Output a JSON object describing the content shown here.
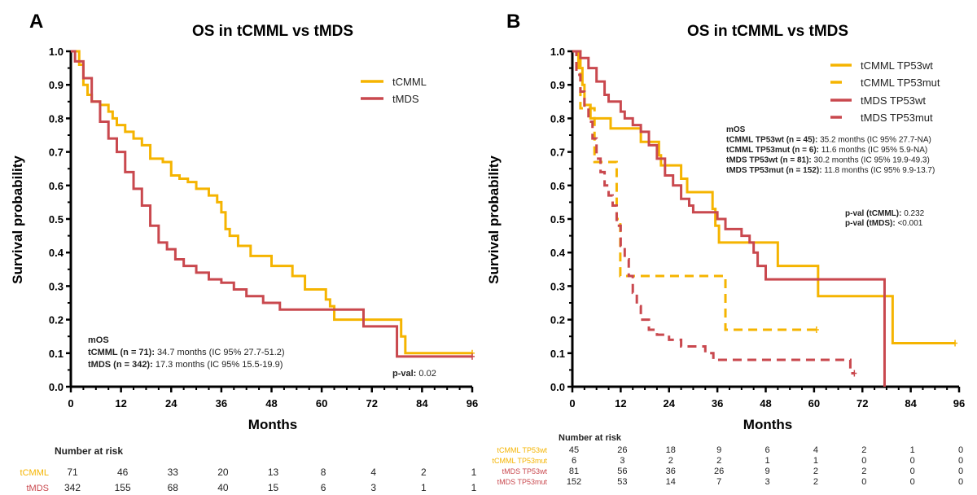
{
  "colors": {
    "tCMML": "#F5B400",
    "tMDS": "#C9484E"
  },
  "chart_data": [
    {
      "type": "line",
      "panel_label": "A",
      "title": "OS in tCMML vs tMDS",
      "xlabel": "Months",
      "ylabel": "Survival probability",
      "xlim": [
        0,
        96
      ],
      "ylim": [
        0,
        1
      ],
      "xticks": [
        0,
        12,
        24,
        36,
        48,
        60,
        72,
        84,
        96
      ],
      "yticks": [
        0.0,
        0.1,
        0.2,
        0.3,
        0.4,
        0.5,
        0.6,
        0.7,
        0.8,
        0.9,
        1.0
      ],
      "legend_position": "top-right",
      "series": [
        {
          "name": "tCMML",
          "color": "#F5B400",
          "style": "solid",
          "points": [
            [
              0,
              1
            ],
            [
              2,
              0.96
            ],
            [
              3,
              0.9
            ],
            [
              4,
              0.87
            ],
            [
              5,
              0.85
            ],
            [
              7,
              0.84
            ],
            [
              9,
              0.82
            ],
            [
              10,
              0.8
            ],
            [
              11,
              0.78
            ],
            [
              13,
              0.76
            ],
            [
              15,
              0.74
            ],
            [
              17,
              0.72
            ],
            [
              19,
              0.68
            ],
            [
              22,
              0.67
            ],
            [
              24,
              0.63
            ],
            [
              26,
              0.62
            ],
            [
              28,
              0.61
            ],
            [
              30,
              0.59
            ],
            [
              33,
              0.57
            ],
            [
              35,
              0.55
            ],
            [
              36,
              0.52
            ],
            [
              37,
              0.47
            ],
            [
              38,
              0.45
            ],
            [
              40,
              0.42
            ],
            [
              43,
              0.39
            ],
            [
              48,
              0.36
            ],
            [
              53,
              0.33
            ],
            [
              56,
              0.29
            ],
            [
              61,
              0.26
            ],
            [
              62,
              0.24
            ],
            [
              63,
              0.2
            ],
            [
              79,
              0.15
            ],
            [
              80,
              0.1
            ],
            [
              96,
              0.1
            ]
          ]
        },
        {
          "name": "tMDS",
          "color": "#C9484E",
          "style": "solid",
          "points": [
            [
              0,
              1
            ],
            [
              1,
              0.97
            ],
            [
              3,
              0.92
            ],
            [
              5,
              0.85
            ],
            [
              7,
              0.79
            ],
            [
              9,
              0.74
            ],
            [
              11,
              0.7
            ],
            [
              13,
              0.64
            ],
            [
              15,
              0.59
            ],
            [
              17,
              0.54
            ],
            [
              19,
              0.48
            ],
            [
              21,
              0.43
            ],
            [
              23,
              0.41
            ],
            [
              25,
              0.38
            ],
            [
              27,
              0.36
            ],
            [
              30,
              0.34
            ],
            [
              33,
              0.32
            ],
            [
              36,
              0.31
            ],
            [
              39,
              0.29
            ],
            [
              42,
              0.27
            ],
            [
              46,
              0.25
            ],
            [
              50,
              0.23
            ],
            [
              69,
              0.23
            ],
            [
              70,
              0.18
            ],
            [
              77,
              0.18
            ],
            [
              78,
              0.09
            ],
            [
              96,
              0.09
            ]
          ]
        }
      ],
      "mos": {
        "heading": "mOS",
        "rows": [
          {
            "label": "tCMML (n = 71):",
            "value": "34.7 months  (IC 95%  27.7-51.2)"
          },
          {
            "label": "tMDS (n = 342):",
            "value": "17.3 months  (IC 95%  15.5-19.9)"
          }
        ]
      },
      "pvals": [
        {
          "label": "p-val:",
          "value": "0.02"
        }
      ],
      "risk_table": {
        "heading": "Number at risk",
        "rows": [
          {
            "name": "tCMML",
            "color": "#F5B400",
            "values": [
              71,
              46,
              33,
              20,
              13,
              8,
              4,
              2,
              1
            ]
          },
          {
            "name": "tMDS",
            "color": "#C9484E",
            "values": [
              342,
              155,
              68,
              40,
              15,
              6,
              3,
              1,
              1
            ]
          }
        ]
      }
    },
    {
      "type": "line",
      "panel_label": "B",
      "title": "OS in tCMML vs tMDS",
      "xlabel": "Months",
      "ylabel": "Survival probability",
      "xlim": [
        0,
        96
      ],
      "ylim": [
        0,
        1
      ],
      "xticks": [
        0,
        12,
        24,
        36,
        48,
        60,
        72,
        84,
        96
      ],
      "yticks": [
        0.0,
        0.1,
        0.2,
        0.3,
        0.4,
        0.5,
        0.6,
        0.7,
        0.8,
        0.9,
        1.0
      ],
      "legend_position": "top-right",
      "series": [
        {
          "name": "tCMML TP53wt",
          "color": "#F5B400",
          "style": "solid",
          "points": [
            [
              0,
              1
            ],
            [
              1.5,
              0.95
            ],
            [
              2.5,
              0.9
            ],
            [
              3,
              0.84
            ],
            [
              4.5,
              0.8
            ],
            [
              9.5,
              0.77
            ],
            [
              17,
              0.73
            ],
            [
              21.5,
              0.69
            ],
            [
              22,
              0.66
            ],
            [
              27,
              0.62
            ],
            [
              28.5,
              0.58
            ],
            [
              34.8,
              0.53
            ],
            [
              35.5,
              0.48
            ],
            [
              36.4,
              0.43
            ],
            [
              51,
              0.36
            ],
            [
              61,
              0.27
            ],
            [
              79.5,
              0.13
            ],
            [
              95,
              0.13
            ]
          ]
        },
        {
          "name": "tCMML TP53mut",
          "color": "#F5B400",
          "style": "dashed",
          "points": [
            [
              0,
              1
            ],
            [
              2,
              0.83
            ],
            [
              5.5,
              0.67
            ],
            [
              11,
              0.5
            ],
            [
              11.9,
              0.33
            ],
            [
              38,
              0.17
            ],
            [
              60.6,
              0.17
            ]
          ]
        },
        {
          "name": "tMDS TP53wt",
          "color": "#C9484E",
          "style": "solid",
          "points": [
            [
              0,
              1
            ],
            [
              2,
              0.98
            ],
            [
              4,
              0.95
            ],
            [
              6,
              0.91
            ],
            [
              8,
              0.87
            ],
            [
              9,
              0.85
            ],
            [
              12,
              0.82
            ],
            [
              13,
              0.8
            ],
            [
              15,
              0.78
            ],
            [
              17,
              0.76
            ],
            [
              19,
              0.72
            ],
            [
              21,
              0.68
            ],
            [
              23,
              0.63
            ],
            [
              25,
              0.6
            ],
            [
              27,
              0.56
            ],
            [
              29,
              0.54
            ],
            [
              30,
              0.52
            ],
            [
              36,
              0.5
            ],
            [
              38,
              0.47
            ],
            [
              42,
              0.45
            ],
            [
              44,
              0.43
            ],
            [
              45,
              0.4
            ],
            [
              46,
              0.36
            ],
            [
              48,
              0.32
            ],
            [
              77.5,
              0.32
            ],
            [
              77.5,
              0
            ]
          ]
        },
        {
          "name": "tMDS TP53mut",
          "color": "#C9484E",
          "style": "dashed",
          "points": [
            [
              0,
              1
            ],
            [
              1,
              0.93
            ],
            [
              2,
              0.88
            ],
            [
              3,
              0.83
            ],
            [
              4,
              0.79
            ],
            [
              5,
              0.74
            ],
            [
              6,
              0.68
            ],
            [
              7,
              0.64
            ],
            [
              8,
              0.6
            ],
            [
              9,
              0.57
            ],
            [
              10,
              0.54
            ],
            [
              11,
              0.48
            ],
            [
              12,
              0.42
            ],
            [
              13,
              0.38
            ],
            [
              14,
              0.33
            ],
            [
              15,
              0.28
            ],
            [
              16,
              0.24
            ],
            [
              17,
              0.2
            ],
            [
              19,
              0.17
            ],
            [
              21,
              0.155
            ],
            [
              24,
              0.14
            ],
            [
              27,
              0.12
            ],
            [
              33,
              0.1
            ],
            [
              35,
              0.08
            ],
            [
              68,
              0.08
            ],
            [
              69,
              0.04
            ],
            [
              70,
              0.04
            ]
          ]
        }
      ],
      "mos": {
        "heading": "mOS",
        "rows": [
          {
            "label": "tCMML TP53wt (n = 45):",
            "value": "35.2 months (IC 95% 27.7-NA)"
          },
          {
            "label": "tCMML TP53mut (n = 6):",
            "value": "11.6 months (IC 95% 5.9-NA)"
          },
          {
            "label": "tMDS TP53wt (n = 81):",
            "value": "30.2 months (IC 95% 19.9-49.3)"
          },
          {
            "label": "tMDS TP53mut (n = 152):",
            "value": "11.8 months (IC 95% 9.9-13.7)"
          }
        ]
      },
      "pvals": [
        {
          "label": "p-val (tCMML):",
          "value": "0.232"
        },
        {
          "label": "p-val (tMDS):",
          "value": "<0.001"
        }
      ],
      "risk_table": {
        "heading": "Number at risk",
        "rows": [
          {
            "name": "tCMML TP53wt",
            "color": "#F5B400",
            "values": [
              45,
              26,
              18,
              9,
              6,
              4,
              2,
              1,
              0
            ]
          },
          {
            "name": "tCMML TP53mut",
            "color": "#F5B400",
            "values": [
              6,
              3,
              2,
              2,
              1,
              1,
              0,
              0,
              0
            ]
          },
          {
            "name": "tMDS TP53wt",
            "color": "#C9484E",
            "values": [
              81,
              56,
              36,
              26,
              9,
              2,
              2,
              0,
              0
            ]
          },
          {
            "name": "tMDS TP53mut",
            "color": "#C9484E",
            "values": [
              152,
              53,
              14,
              7,
              3,
              2,
              0,
              0,
              0
            ]
          }
        ]
      }
    }
  ]
}
